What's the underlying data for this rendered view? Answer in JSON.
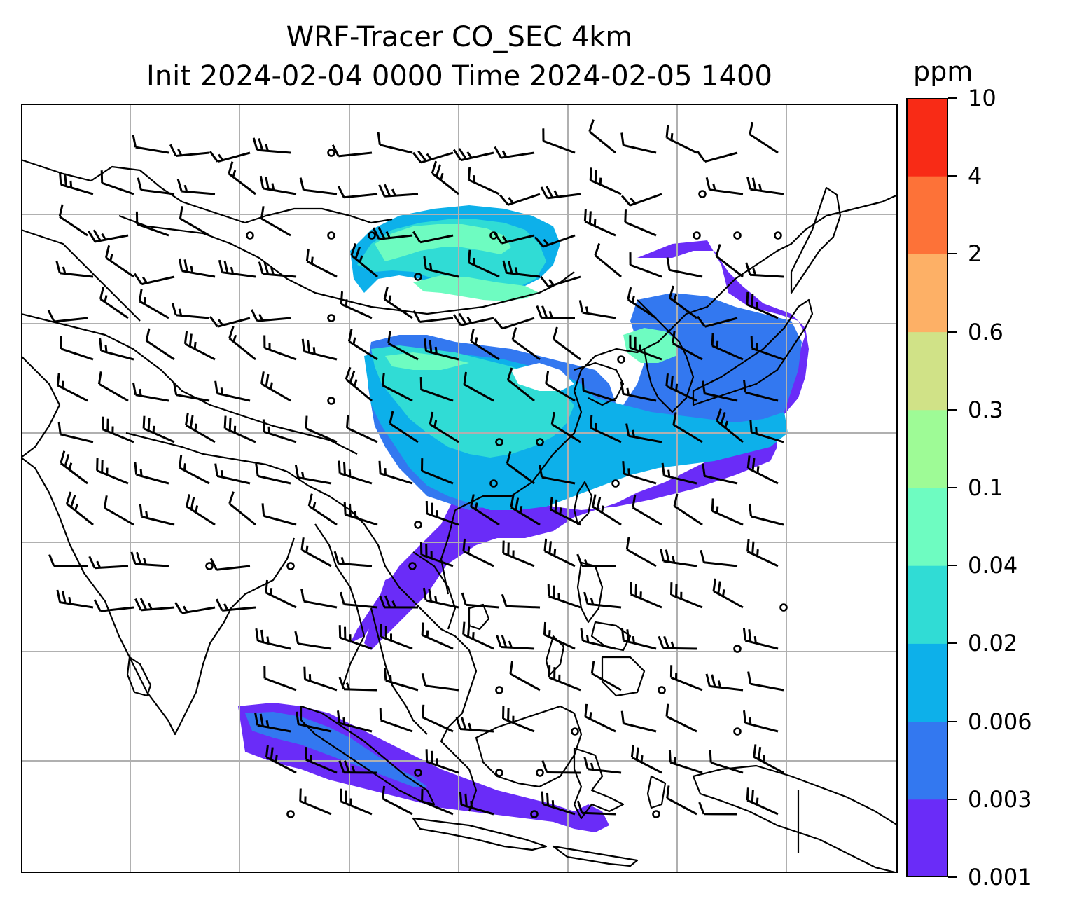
{
  "title_line1": "WRF-Tracer CO_SEC 4km",
  "title_line2": "Init 2024-02-04 0000 Time 2024-02-05 1400",
  "colorbar": {
    "unit": "ppm",
    "levels": [
      "0.001",
      "0.003",
      "0.006",
      "0.02",
      "0.04",
      "0.1",
      "0.3",
      "0.6",
      "2",
      "4",
      "10"
    ],
    "colors": [
      "#6a2cf8",
      "#3378f0",
      "#0db0ea",
      "#30dcd5",
      "#6efcc1",
      "#9efb96",
      "#d0e287",
      "#fdb066",
      "#fd7238",
      "#f82b16"
    ]
  },
  "map": {
    "gridline_color": "#b0b0b0",
    "coastline_color": "#000000",
    "fill_colors": {
      "lowest": "#6a2cf8",
      "low": "#3378f0",
      "mid": "#0db0ea",
      "midhigh": "#30dcd5",
      "high": "#6efcc1"
    },
    "wind_barb_icon": "wind-barb-icon",
    "calm_icon": "calm-circle-icon"
  }
}
